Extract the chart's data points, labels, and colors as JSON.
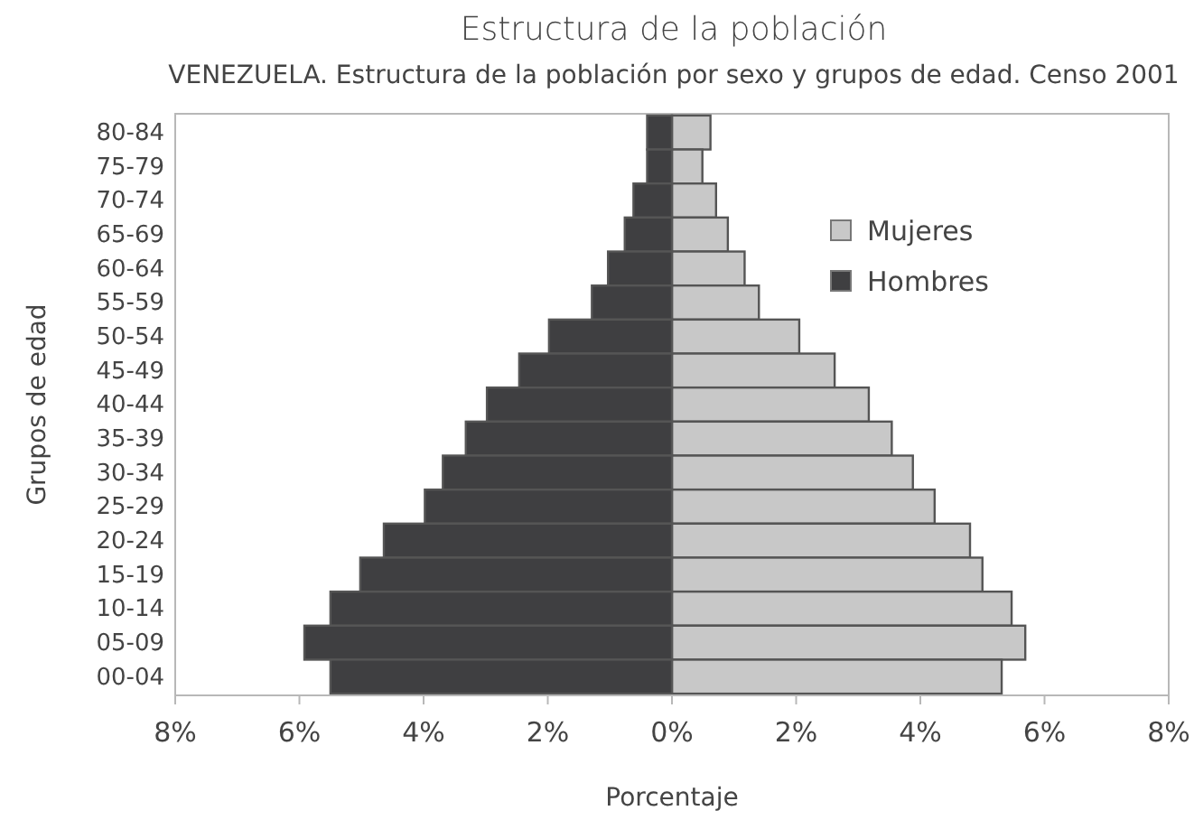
{
  "chart_data": {
    "type": "bar",
    "orientation": "horizontal",
    "stacked": true,
    "title": "Estructura de la población",
    "subtitle": "VENEZUELA. Estructura de la población por sexo y grupos de edad. Censo 2001",
    "xlabel": "Porcentaje",
    "ylabel": "Grupos de edad",
    "categories": [
      "80-84",
      "75-79",
      "70-74",
      "65-69",
      "60-64",
      "55-59",
      "50-54",
      "45-49",
      "40-44",
      "35-39",
      "30-34",
      "25-29",
      "20-24",
      "15-19",
      "10-14",
      "05-09",
      "00-04"
    ],
    "series": [
      {
        "name": "Mujeres",
        "color": "#c8c8c8",
        "values": [
          0.62,
          0.49,
          0.71,
          0.9,
          1.17,
          1.4,
          2.05,
          2.62,
          3.17,
          3.54,
          3.88,
          4.23,
          4.8,
          5.0,
          5.47,
          5.69,
          5.31
        ]
      },
      {
        "name": "Hombres",
        "color": "#3f3f41",
        "values": [
          -0.4,
          -0.4,
          -0.62,
          -0.76,
          -1.03,
          -1.29,
          -1.98,
          -2.46,
          -2.98,
          -3.32,
          -3.69,
          -3.98,
          -4.64,
          -5.02,
          -5.5,
          -5.92,
          -5.5
        ]
      }
    ],
    "xlim": [
      -8,
      8
    ],
    "xticks": [
      {
        "value": -8,
        "label": "8%"
      },
      {
        "value": -6,
        "label": "6%"
      },
      {
        "value": -4,
        "label": "4%"
      },
      {
        "value": -2,
        "label": "2%"
      },
      {
        "value": 0,
        "label": "0%"
      },
      {
        "value": 2,
        "label": "2%"
      },
      {
        "value": 4,
        "label": "4%"
      },
      {
        "value": 6,
        "label": "6%"
      },
      {
        "value": 8,
        "label": "8%"
      }
    ],
    "grid": false,
    "legend": "top right"
  }
}
